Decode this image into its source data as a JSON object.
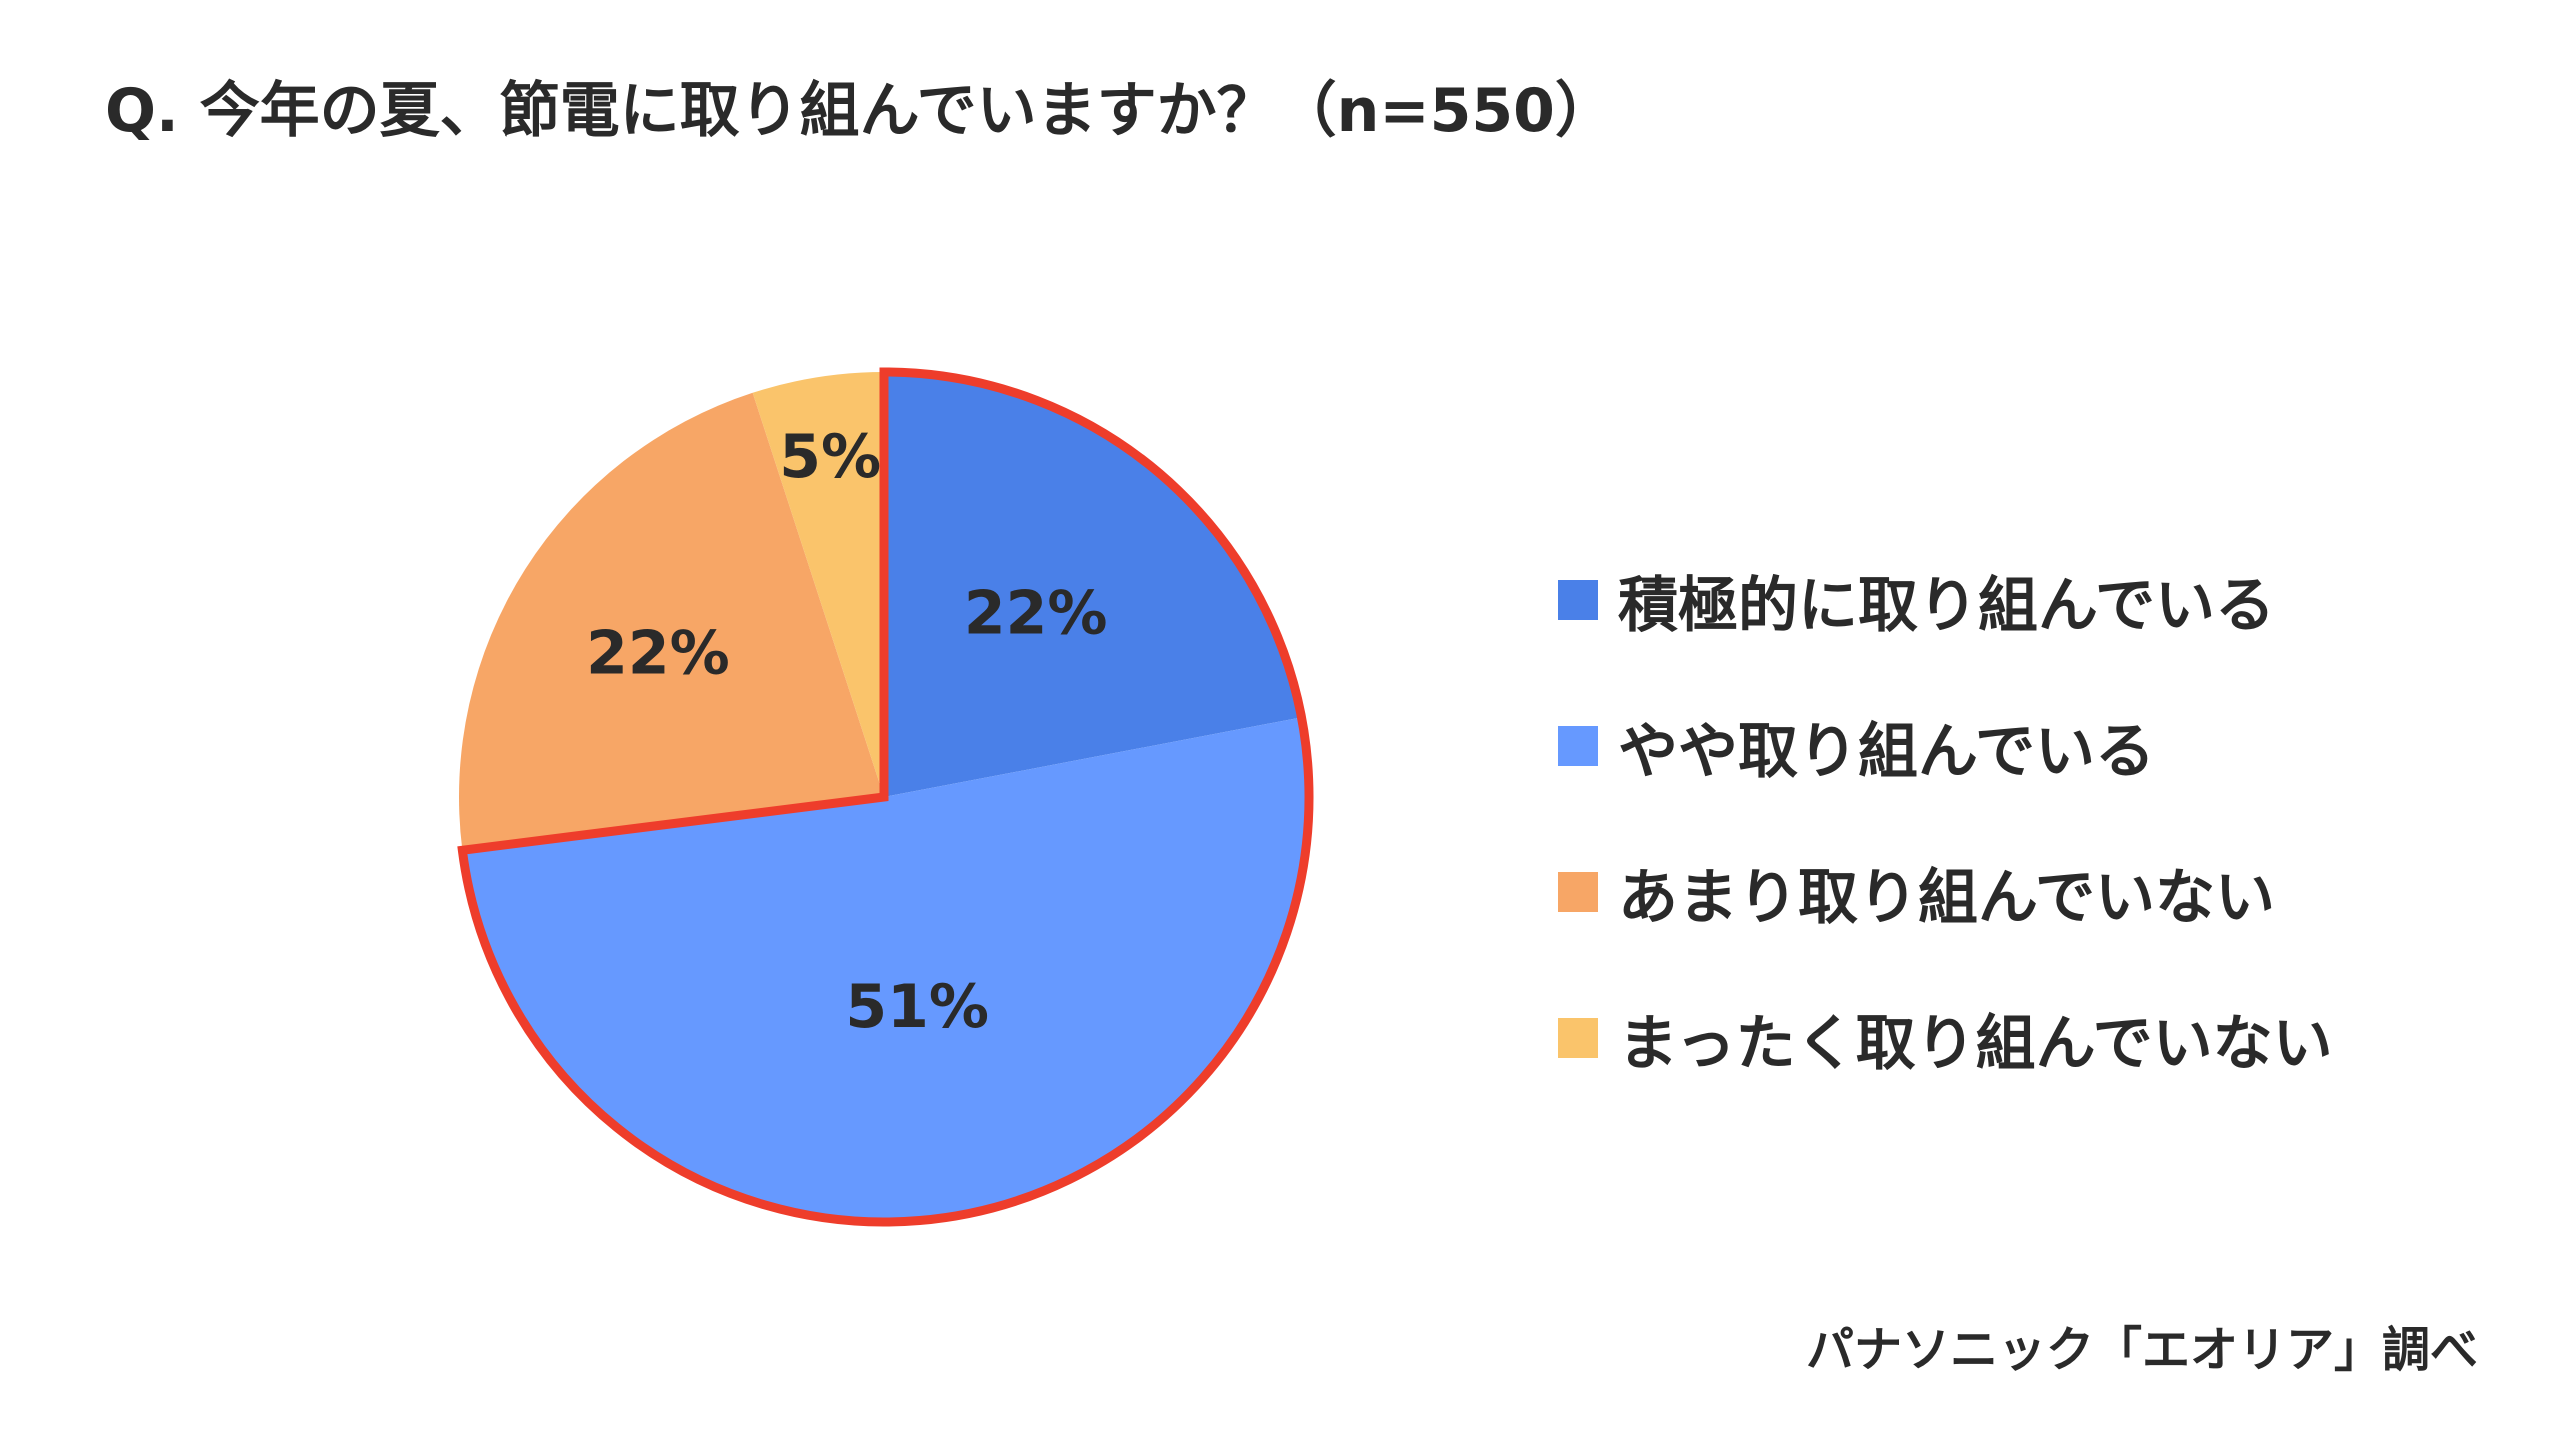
{
  "title": "Q. 今年の夏、節電に取り組んでいますか？（n=550）",
  "source": "パナソニック「エオリア」調べ",
  "chart_data": {
    "type": "pie",
    "title": "Q. 今年の夏、節電に取り組んでいますか？（n=550）",
    "categories": [
      "積極的に取り組んでいる",
      "やや取り組んでいる",
      "あまり取り組んでいない",
      "まったく取り組んでいない"
    ],
    "values": [
      22,
      51,
      22,
      5
    ],
    "labels": [
      "22%",
      "51%",
      "22%",
      "5%"
    ],
    "colors": [
      "#4a80e8",
      "#6699ff",
      "#f7a666",
      "#fac46b"
    ],
    "highlight_color": "#ee3d2b",
    "highlight_categories": [
      "積極的に取り組んでいる",
      "やや取り組んでいる"
    ],
    "legend": "right"
  }
}
